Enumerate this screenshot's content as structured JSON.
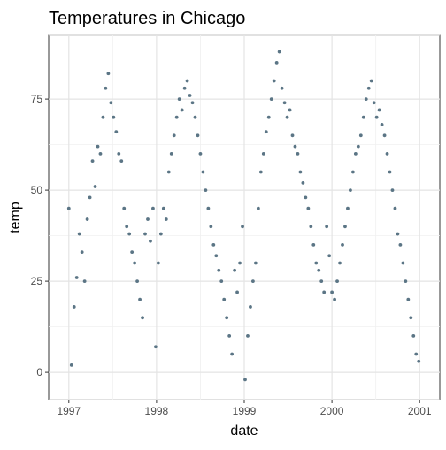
{
  "chart_data": {
    "type": "scatter",
    "title": "Temperatures in Chicago",
    "xlabel": "date",
    "ylabel": "temp",
    "x_ticks": [
      "1997",
      "1998",
      "1999",
      "2000",
      "2001"
    ],
    "y_ticks": [
      0,
      25,
      50,
      75
    ],
    "xlim": [
      1996.77,
      2001.23
    ],
    "ylim": [
      -7.5,
      92.5
    ],
    "grid": true,
    "legend": "none",
    "point_color": "#5b7585",
    "series": [
      {
        "x": [
          1997.0,
          1997.03,
          1997.06,
          1997.09,
          1997.12,
          1997.15,
          1997.18,
          1997.21,
          1997.24,
          1997.27,
          1997.3,
          1997.33,
          1997.36,
          1997.39,
          1997.42,
          1997.45,
          1997.48,
          1997.51,
          1997.54,
          1997.57,
          1997.6,
          1997.63,
          1997.66,
          1997.69,
          1997.72,
          1997.75,
          1997.78,
          1997.81,
          1997.84,
          1997.87,
          1997.9,
          1997.93,
          1997.96,
          1997.99,
          1998.02,
          1998.05,
          1998.08,
          1998.11,
          1998.14,
          1998.17,
          1998.2,
          1998.23,
          1998.26,
          1998.29,
          1998.32,
          1998.35,
          1998.38,
          1998.41,
          1998.44,
          1998.47,
          1998.5,
          1998.53,
          1998.56,
          1998.59,
          1998.62,
          1998.65,
          1998.68,
          1998.71,
          1998.74,
          1998.77,
          1998.8,
          1998.83,
          1998.86,
          1998.89,
          1998.92,
          1998.95,
          1998.98,
          1999.01,
          1999.04,
          1999.07,
          1999.1,
          1999.13,
          1999.16,
          1999.19,
          1999.22,
          1999.25,
          1999.28,
          1999.31,
          1999.34,
          1999.37,
          1999.4,
          1999.43,
          1999.46,
          1999.49,
          1999.52,
          1999.55,
          1999.58,
          1999.61,
          1999.64,
          1999.67,
          1999.7,
          1999.73,
          1999.76,
          1999.79,
          1999.82,
          1999.85,
          1999.88,
          1999.91,
          1999.94,
          1999.97,
          2000.0,
          2000.03,
          2000.06,
          2000.09,
          2000.12,
          2000.15,
          2000.18,
          2000.21,
          2000.24,
          2000.27,
          2000.3,
          2000.33,
          2000.36,
          2000.39,
          2000.42,
          2000.45,
          2000.48,
          2000.51,
          2000.54,
          2000.57,
          2000.6,
          2000.63,
          2000.66,
          2000.69,
          2000.72,
          2000.75,
          2000.78,
          2000.81,
          2000.84,
          2000.87,
          2000.9,
          2000.93,
          2000.96,
          2000.99
        ],
        "y": [
          45,
          2,
          18,
          26,
          38,
          33,
          25,
          42,
          48,
          58,
          51,
          62,
          60,
          70,
          78,
          82,
          74,
          70,
          66,
          60,
          58,
          45,
          40,
          38,
          33,
          30,
          25,
          20,
          15,
          38,
          42,
          36,
          45,
          7,
          30,
          38,
          45,
          42,
          55,
          60,
          65,
          70,
          75,
          72,
          78,
          80,
          76,
          74,
          70,
          65,
          60,
          55,
          50,
          45,
          40,
          35,
          32,
          28,
          25,
          20,
          15,
          10,
          5,
          28,
          22,
          30,
          40,
          -2,
          10,
          18,
          25,
          30,
          45,
          55,
          60,
          66,
          70,
          75,
          80,
          85,
          88,
          78,
          74,
          70,
          72,
          65,
          62,
          60,
          55,
          52,
          48,
          45,
          40,
          35,
          30,
          28,
          25,
          22,
          40,
          32,
          22,
          20,
          25,
          30,
          35,
          40,
          45,
          50,
          55,
          60,
          62,
          65,
          70,
          75,
          78,
          80,
          74,
          70,
          72,
          68,
          65,
          60,
          55,
          50,
          45,
          38,
          35,
          30,
          25,
          20,
          15,
          10,
          5,
          3
        ]
      }
    ]
  }
}
